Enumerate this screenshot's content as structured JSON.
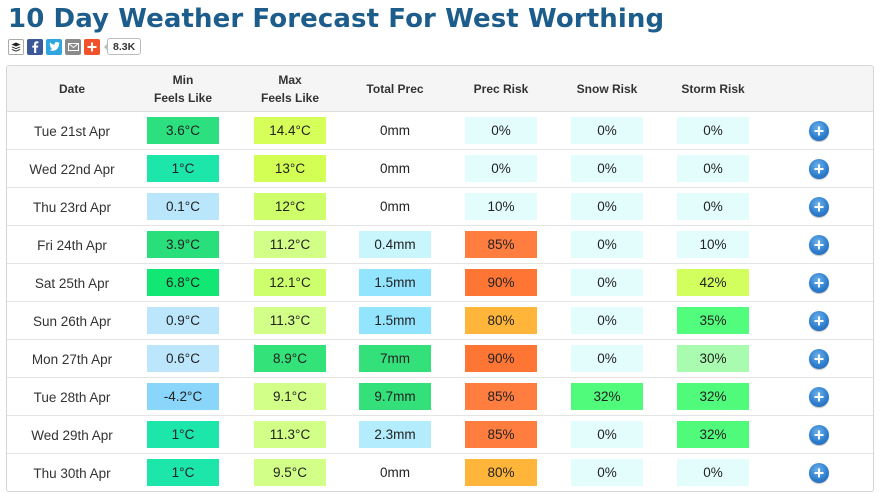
{
  "title": "10 Day Weather Forecast For West Worthing",
  "share": {
    "buttons": [
      {
        "name": "buffer-icon",
        "color": "#ffffff"
      },
      {
        "name": "facebook-icon",
        "color": "#3b5998"
      },
      {
        "name": "twitter-icon",
        "color": "#2fa6e0"
      },
      {
        "name": "email-icon",
        "color": "#8a8a8a"
      },
      {
        "name": "add-share-icon",
        "color": "#f3502c"
      }
    ],
    "count": "8.3K"
  },
  "table": {
    "headers": {
      "date": "Date",
      "min": "Min",
      "min2": "Feels Like",
      "max": "Max",
      "max2": "Feels Like",
      "prec": "Total Prec",
      "prec_risk": "Prec Risk",
      "snow": "Snow Risk",
      "storm": "Storm Risk"
    },
    "rows": [
      {
        "date": "Tue 21st Apr",
        "min": "3.6°C",
        "min_color": "#2de07f",
        "max": "14.4°C",
        "max_color": "#d7ff5a",
        "prec": "0mm",
        "prec_color": "#ffffff",
        "prec_risk": "0%",
        "prec_risk_color": "#e3fdfd",
        "snow": "0%",
        "snow_color": "#e3fdfd",
        "storm": "0%",
        "storm_color": "#e3fdfd"
      },
      {
        "date": "Wed 22nd Apr",
        "min": "1°C",
        "min_color": "#1de6aa",
        "max": "13°C",
        "max_color": "#d3ff54",
        "prec": "0mm",
        "prec_color": "#ffffff",
        "prec_risk": "0%",
        "prec_risk_color": "#e3fdfd",
        "snow": "0%",
        "snow_color": "#e3fdfd",
        "storm": "0%",
        "storm_color": "#e3fdfd"
      },
      {
        "date": "Thu 23rd Apr",
        "min": "0.1°C",
        "min_color": "#b9e6fb",
        "max": "12°C",
        "max_color": "#ceff6a",
        "prec": "0mm",
        "prec_color": "#ffffff",
        "prec_risk": "10%",
        "prec_risk_color": "#e3fdfd",
        "snow": "0%",
        "snow_color": "#e3fdfd",
        "storm": "0%",
        "storm_color": "#e3fdfd"
      },
      {
        "date": "Fri 24th Apr",
        "min": "3.9°C",
        "min_color": "#29df7c",
        "max": "11.2°C",
        "max_color": "#d1ff88",
        "prec": "0.4mm",
        "prec_color": "#c9f6fd",
        "prec_risk": "85%",
        "prec_risk_color": "#ff7d3f",
        "snow": "0%",
        "snow_color": "#e3fdfd",
        "storm": "10%",
        "storm_color": "#e3fdfd"
      },
      {
        "date": "Sat 25th Apr",
        "min": "6.8°C",
        "min_color": "#13e773",
        "max": "12.1°C",
        "max_color": "#cdff6c",
        "prec": "1.5mm",
        "prec_color": "#93e4ff",
        "prec_risk": "90%",
        "prec_risk_color": "#ff7634",
        "snow": "0%",
        "snow_color": "#e3fdfd",
        "storm": "42%",
        "storm_color": "#d3ff5e"
      },
      {
        "date": "Sun 26th Apr",
        "min": "0.9°C",
        "min_color": "#bbe6fb",
        "max": "11.3°C",
        "max_color": "#d1ff88",
        "prec": "1.5mm",
        "prec_color": "#93e4ff",
        "prec_risk": "80%",
        "prec_risk_color": "#ffb43a",
        "snow": "0%",
        "snow_color": "#e3fdfd",
        "storm": "35%",
        "storm_color": "#52fc7c"
      },
      {
        "date": "Mon 27th Apr",
        "min": "0.6°C",
        "min_color": "#bbe6fb",
        "max": "8.9°C",
        "max_color": "#34e27a",
        "prec": "7mm",
        "prec_color": "#34e07a",
        "prec_risk": "90%",
        "prec_risk_color": "#ff7634",
        "snow": "0%",
        "snow_color": "#e3fdfd",
        "storm": "30%",
        "storm_color": "#a9fcaf"
      },
      {
        "date": "Tue 28th Apr",
        "min": "-4.2°C",
        "min_color": "#8ad5fa",
        "max": "9.1°C",
        "max_color": "#d1ff88",
        "prec": "9.7mm",
        "prec_color": "#34e07a",
        "prec_risk": "85%",
        "prec_risk_color": "#ff7d3f",
        "snow": "32%",
        "snow_color": "#50fb7c",
        "storm": "32%",
        "storm_color": "#50fb7c"
      },
      {
        "date": "Wed 29th Apr",
        "min": "1°C",
        "min_color": "#1de6aa",
        "max": "11.3°C",
        "max_color": "#d1ff88",
        "prec": "2.3mm",
        "prec_color": "#b3ecfc",
        "prec_risk": "85%",
        "prec_risk_color": "#ff7d3f",
        "snow": "0%",
        "snow_color": "#e3fdfd",
        "storm": "32%",
        "storm_color": "#50fb7c"
      },
      {
        "date": "Thu 30th Apr",
        "min": "1°C",
        "min_color": "#1de6aa",
        "max": "9.5°C",
        "max_color": "#d1ff88",
        "prec": "0mm",
        "prec_color": "#ffffff",
        "prec_risk": "80%",
        "prec_risk_color": "#ffb43a",
        "snow": "0%",
        "snow_color": "#e3fdfd",
        "storm": "0%",
        "storm_color": "#e3fdfd"
      }
    ]
  }
}
